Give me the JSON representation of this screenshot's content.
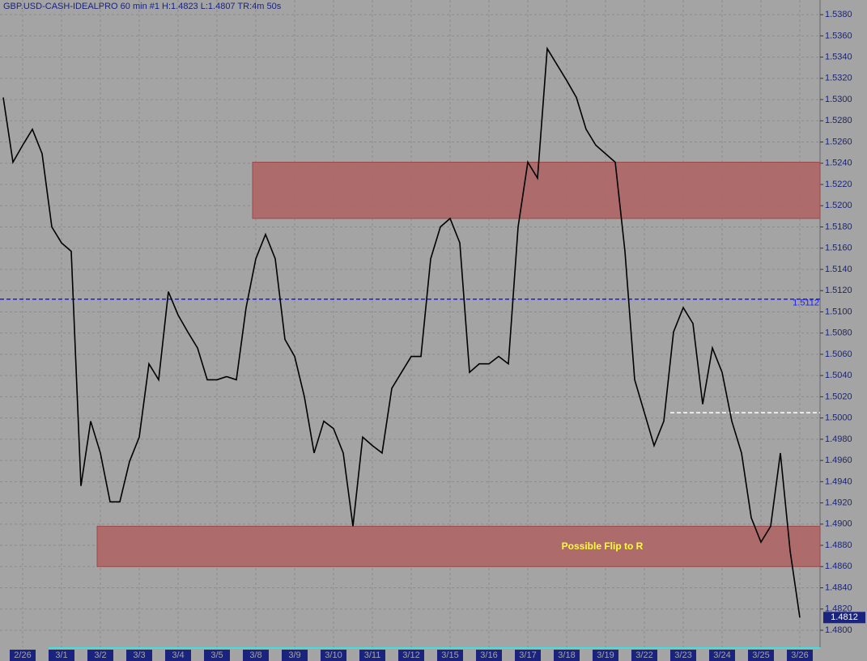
{
  "chart_data": {
    "type": "line",
    "title": "GBP.USD-CASH-IDEALPRO  60 min  #1  H:1.4823  L:1.4807  TR:4m 50s",
    "categories": [
      null,
      null,
      "2/26",
      null,
      null,
      null,
      "3/1",
      null,
      null,
      null,
      "3/2",
      null,
      null,
      null,
      "3/3",
      null,
      null,
      null,
      "3/4",
      null,
      null,
      null,
      "3/5",
      null,
      null,
      null,
      "3/8",
      null,
      null,
      null,
      "3/9",
      null,
      null,
      null,
      "3/10",
      null,
      null,
      null,
      "3/11",
      null,
      null,
      null,
      "3/12",
      null,
      null,
      null,
      "3/15",
      null,
      null,
      null,
      "3/16",
      null,
      null,
      null,
      "3/17",
      null,
      null,
      null,
      "3/18",
      null,
      null,
      null,
      "3/19",
      null,
      null,
      null,
      "3/22",
      null,
      null,
      null,
      "3/23",
      null,
      null,
      null,
      "3/24",
      null,
      null,
      null,
      "3/25",
      null,
      null,
      null,
      "3/26"
    ],
    "values": [
      1.5302,
      1.5241,
      1.5257,
      1.5272,
      1.5249,
      1.518,
      1.5165,
      1.5157,
      1.4936,
      1.4997,
      1.4967,
      1.4921,
      1.4921,
      1.4959,
      1.4982,
      1.5051,
      1.5036,
      1.5119,
      1.5097,
      1.5081,
      1.5066,
      1.5036,
      1.5036,
      1.5039,
      1.5036,
      1.5104,
      1.515,
      1.5173,
      1.515,
      1.5074,
      1.5058,
      1.502,
      1.4967,
      1.4997,
      1.499,
      1.4967,
      1.4898,
      1.4982,
      1.4974,
      1.4967,
      1.5028,
      1.5043,
      1.5058,
      1.5058,
      1.515,
      1.518,
      1.5188,
      1.5165,
      1.5043,
      1.5051,
      1.5051,
      1.5058,
      1.5051,
      1.518,
      1.5241,
      1.5226,
      1.5348,
      1.5333,
      1.5318,
      1.5302,
      1.5272,
      1.5257,
      1.5249,
      1.5241,
      1.5157,
      1.5036,
      1.5005,
      1.4974,
      1.4997,
      1.5081,
      1.5104,
      1.5089,
      1.5013,
      1.5066,
      1.5043,
      1.4997,
      1.4967,
      1.4906,
      1.4883,
      1.4898,
      1.4967,
      1.4875,
      1.4812
    ],
    "color": "#000000",
    "ylim": [
      1.4784,
      1.539
    ],
    "yticks": [
      {
        "value": 1.48,
        "label": "1.4800"
      },
      {
        "value": 1.482,
        "label": "1.4820"
      },
      {
        "value": 1.484,
        "label": "1.4840"
      },
      {
        "value": 1.486,
        "label": "1.4860"
      },
      {
        "value": 1.488,
        "label": "1.4880"
      },
      {
        "value": 1.49,
        "label": "1.4900"
      },
      {
        "value": 1.492,
        "label": "1.4920"
      },
      {
        "value": 1.494,
        "label": "1.4940"
      },
      {
        "value": 1.496,
        "label": "1.4960"
      },
      {
        "value": 1.498,
        "label": "1.4980"
      },
      {
        "value": 1.5,
        "label": "1.5000"
      },
      {
        "value": 1.502,
        "label": "1.5020"
      },
      {
        "value": 1.504,
        "label": "1.5040"
      },
      {
        "value": 1.506,
        "label": "1.5060"
      },
      {
        "value": 1.508,
        "label": "1.5080"
      },
      {
        "value": 1.51,
        "label": "1.5100"
      },
      {
        "value": 1.512,
        "label": "1.5120"
      },
      {
        "value": 1.514,
        "label": "1.5140"
      },
      {
        "value": 1.516,
        "label": "1.5160"
      },
      {
        "value": 1.518,
        "label": "1.5180"
      },
      {
        "value": 1.52,
        "label": "1.5200"
      },
      {
        "value": 1.522,
        "label": "1.5220"
      },
      {
        "value": 1.524,
        "label": "1.5240"
      },
      {
        "value": 1.526,
        "label": "1.5260"
      },
      {
        "value": 1.528,
        "label": "1.5280"
      },
      {
        "value": 1.53,
        "label": "1.5300"
      },
      {
        "value": 1.532,
        "label": "1.5320"
      },
      {
        "value": 1.534,
        "label": "1.5340"
      },
      {
        "value": 1.536,
        "label": "1.5360"
      },
      {
        "value": 1.538,
        "label": "1.5380"
      }
    ],
    "grid": true,
    "zones": [
      {
        "from": 1.5188,
        "to": 1.5241,
        "start": 26,
        "color": "#b06262"
      },
      {
        "from": 1.486,
        "to": 1.4898,
        "start": 10,
        "color": "#b06262"
      }
    ],
    "hlines": [
      {
        "value": 1.5112,
        "start": 0,
        "color": "#1a1aff"
      },
      {
        "value": 1.5005,
        "start": 69,
        "color": "#ffffff"
      }
    ],
    "annotation": "Possible Flip to R",
    "last_price": 1.4812
  }
}
